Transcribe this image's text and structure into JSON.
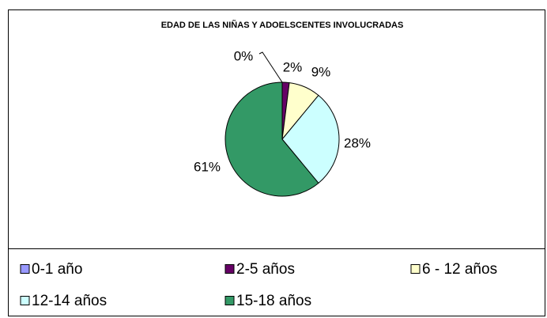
{
  "chart_data": {
    "type": "pie",
    "title": "EDAD DE LAS NIÑAS Y ADOELSCENTES INVOLUCRADAS",
    "categories": [
      "0-1 año",
      "2-5 años",
      "6 - 12 años",
      "12-14 años",
      "15-18 años"
    ],
    "values": [
      0,
      2,
      9,
      28,
      61
    ],
    "value_labels": [
      "0%",
      "2%",
      "9%",
      "28%",
      "61%"
    ],
    "colors": [
      "#9999ff",
      "#660066",
      "#ffffcc",
      "#ccffff",
      "#339966"
    ],
    "legend": "bottom"
  }
}
